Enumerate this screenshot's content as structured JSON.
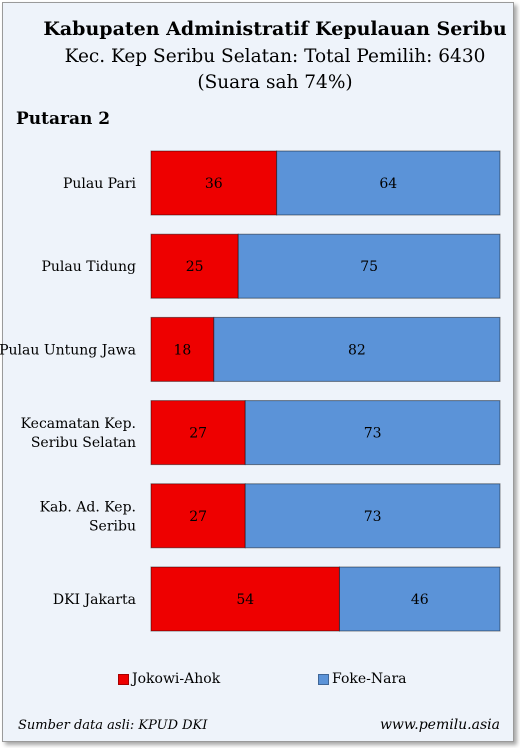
{
  "title": "Kabupaten Administratif Kepulauan Seribu",
  "subtitle": "Kec. Kep Seribu Selatan: Total Pemilih: 6430",
  "subtitle2": "(Suara sah 74%)",
  "round_label": "Putaran 2",
  "colors": {
    "jokowi": "#ee0000",
    "foke": "#5b93d8",
    "background": "#eef3fa"
  },
  "chart_data": {
    "type": "bar",
    "orientation": "horizontal",
    "stacked": "100%",
    "categories": [
      [
        "Pulau Pari"
      ],
      [
        "Pulau Tidung"
      ],
      [
        "Pulau Untung Jawa"
      ],
      [
        "Kecamatan Kep.",
        "Seribu Selatan"
      ],
      [
        "Kab. Ad. Kep.",
        "Seribu"
      ],
      [
        "DKI Jakarta"
      ]
    ],
    "series": [
      {
        "name": "Jokowi-Ahok",
        "values": [
          36,
          25,
          18,
          27,
          27,
          54
        ]
      },
      {
        "name": "Foke-Nara",
        "values": [
          64,
          75,
          82,
          73,
          73,
          46
        ]
      }
    ],
    "xlim": [
      0,
      100
    ],
    "grid": false,
    "data_labels": true,
    "legend": "bottom"
  },
  "legend": {
    "item1": "Jokowi-Ahok",
    "item2": "Foke-Nara"
  },
  "footer": {
    "source": "Sumber data asli: KPUD DKI",
    "site": "www.pemilu.asia"
  }
}
